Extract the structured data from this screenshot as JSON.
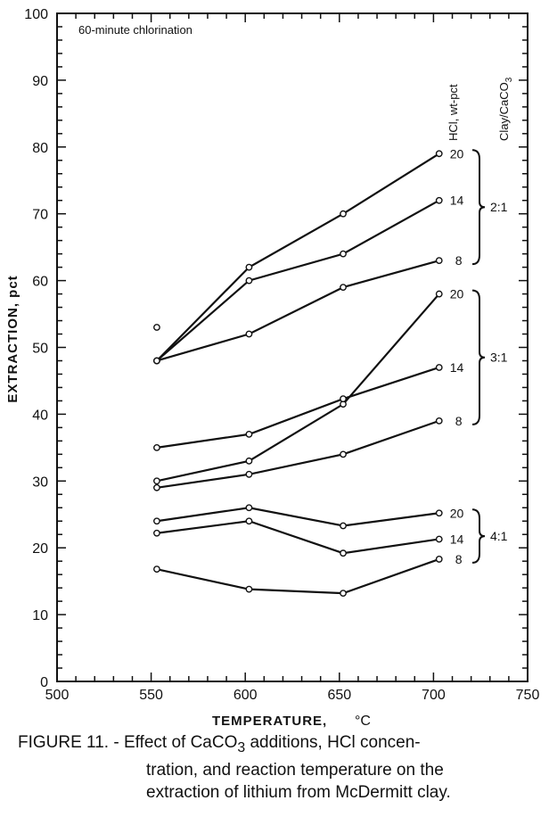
{
  "chart_data": {
    "type": "line",
    "annotation": "60-minute chlorination",
    "xlabel": "TEMPERATURE,",
    "xunit": "°C",
    "ylabel": "EXTRACTION, pct",
    "xlim": [
      500,
      750
    ],
    "ylim": [
      0,
      100
    ],
    "xticks": [
      500,
      550,
      600,
      650,
      700,
      750
    ],
    "yticks": [
      0,
      10,
      20,
      30,
      40,
      50,
      60,
      70,
      80,
      90,
      100
    ],
    "grid": false,
    "column_header_hcl": "HCl, wt-pct",
    "column_header_ratio": "Clay/CaCO",
    "column_header_ratio_sub": "3",
    "x": [
      553,
      602,
      652,
      703
    ],
    "series": [
      {
        "group": "2:1",
        "label": "20",
        "values": [
          48,
          62,
          70,
          79
        ]
      },
      {
        "group": "2:1",
        "label": "14",
        "values": [
          48,
          60,
          64,
          72
        ]
      },
      {
        "group": "2:1",
        "label": "8",
        "values": [
          53,
          null,
          null,
          null
        ],
        "note": "start point"
      },
      {
        "group": "2:1",
        "label": "8",
        "values": [
          48,
          52,
          59,
          63
        ]
      },
      {
        "group": "3:1",
        "label": "20",
        "values": [
          30,
          33,
          41.5,
          58
        ]
      },
      {
        "group": "3:1",
        "label": "14",
        "values": [
          35,
          37,
          42.3,
          47
        ]
      },
      {
        "group": "3:1",
        "label": "8",
        "values": [
          29,
          31,
          34,
          39
        ]
      },
      {
        "group": "4:1",
        "label": "20",
        "values": [
          24,
          26,
          23.3,
          25.2
        ]
      },
      {
        "group": "4:1",
        "label": "14",
        "values": [
          22.2,
          24,
          19.2,
          21.3
        ]
      },
      {
        "group": "4:1",
        "label": "8",
        "values": [
          16.8,
          13.8,
          13.2,
          18.3
        ]
      }
    ],
    "groups": [
      "2:1",
      "3:1",
      "4:1"
    ]
  },
  "caption": {
    "prefix": "FIGURE 11. - Effect of CaCO",
    "sub": "3",
    "line1_rest": " additions, HCl concen-",
    "line2": "tration, and reaction temperature on the",
    "line3": "extraction of lithium from McDermitt clay."
  }
}
